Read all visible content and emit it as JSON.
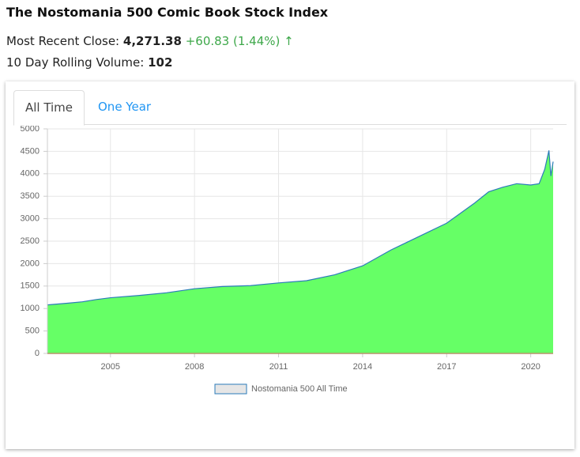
{
  "header": {
    "title": "The Nostomania 500 Comic Book Stock Index",
    "close_label": "Most Recent Close:",
    "close_value": "4,271.38",
    "close_change": "+60.83 (1.44%)",
    "close_arrow": "↑",
    "volume_label": "10 Day Rolling Volume:",
    "volume_value": "102"
  },
  "tabs": [
    "All Time",
    "One Year"
  ],
  "chart_data": {
    "type": "area",
    "x": [
      2002.75,
      2003.5,
      2004,
      2004.5,
      2005,
      2006,
      2007,
      2008,
      2009,
      2010,
      2011,
      2012,
      2013,
      2014,
      2015,
      2016,
      2017,
      2018,
      2018.5,
      2019,
      2019.5,
      2020,
      2020.3,
      2020.5,
      2020.65,
      2020.72,
      2020.8
    ],
    "series": [
      {
        "name": "Nostomania 500 All Time",
        "color": "#66ff66",
        "line_color": "#2b7bb9",
        "values": [
          1080,
          1120,
          1150,
          1200,
          1240,
          1290,
          1350,
          1440,
          1490,
          1510,
          1570,
          1620,
          1750,
          1950,
          2300,
          2600,
          2900,
          3350,
          3600,
          3700,
          3780,
          3750,
          3780,
          4100,
          4520,
          3950,
          4270
        ]
      }
    ],
    "xlim": [
      2002.75,
      2020.8
    ],
    "xticks": [
      2005,
      2008,
      2011,
      2014,
      2017,
      2020
    ],
    "ylim": [
      0,
      5000
    ],
    "yticks": [
      0,
      500,
      1000,
      1500,
      2000,
      2500,
      3000,
      3500,
      4000,
      4500,
      5000
    ],
    "grid": true,
    "legend": "bottom"
  }
}
